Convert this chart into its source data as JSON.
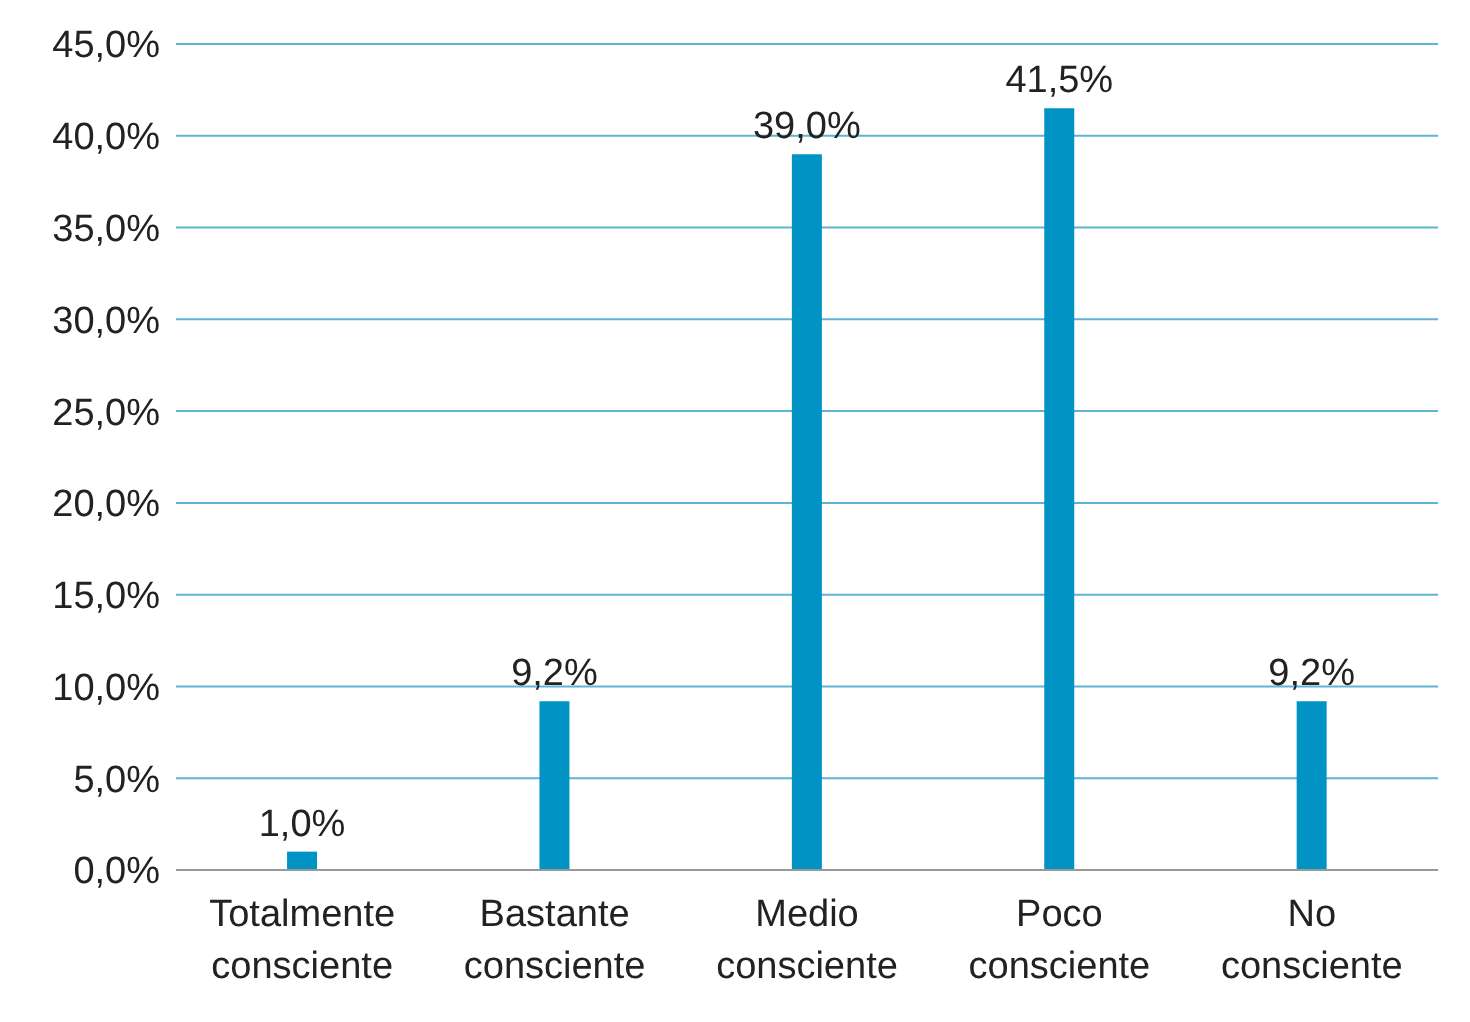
{
  "chart_data": {
    "type": "bar",
    "categories": [
      "Totalmente consciente",
      "Bastante consciente",
      "Medio consciente",
      "Poco consciente",
      "No consciente"
    ],
    "values": [
      1.0,
      9.2,
      39.0,
      41.5,
      9.2
    ],
    "color": "#0093c4",
    "value_labels": [
      "1,0%",
      "9,2%",
      "39,0%",
      "41,5%",
      "9,2%"
    ],
    "ylim": [
      0,
      45
    ],
    "yticks": [
      {
        "value": 0,
        "label": "0,0%"
      },
      {
        "value": 5,
        "label": "5,0%"
      },
      {
        "value": 10,
        "label": "10,0%"
      },
      {
        "value": 15,
        "label": "15,0%"
      },
      {
        "value": 20,
        "label": "20,0%"
      },
      {
        "value": 25,
        "label": "25,0%"
      },
      {
        "value": 30,
        "label": "30,0%"
      },
      {
        "value": 35,
        "label": "35,0%"
      },
      {
        "value": 40,
        "label": "40,0%"
      },
      {
        "value": 45,
        "label": "45,0%"
      }
    ],
    "grid": "y"
  }
}
